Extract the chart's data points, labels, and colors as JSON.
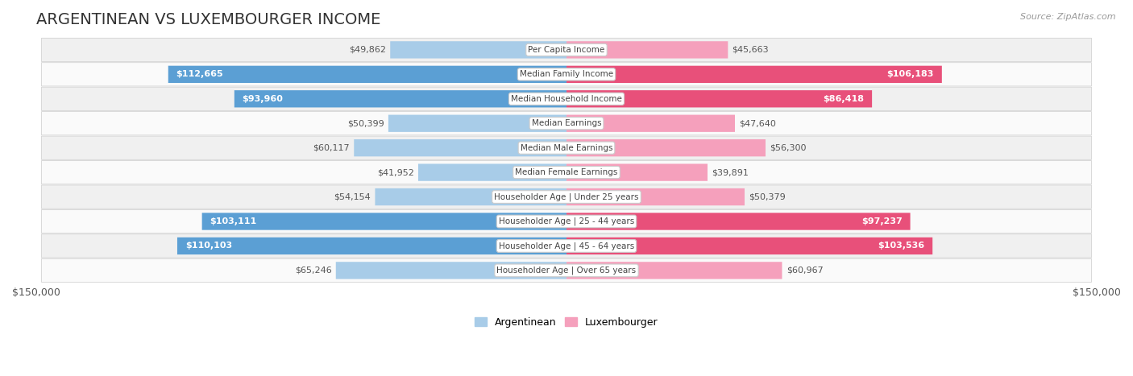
{
  "title": "ARGENTINEAN VS LUXEMBOURGER INCOME",
  "source": "Source: ZipAtlas.com",
  "categories": [
    "Per Capita Income",
    "Median Family Income",
    "Median Household Income",
    "Median Earnings",
    "Median Male Earnings",
    "Median Female Earnings",
    "Householder Age | Under 25 years",
    "Householder Age | 25 - 44 years",
    "Householder Age | 45 - 64 years",
    "Householder Age | Over 65 years"
  ],
  "argentinean_values": [
    49862,
    112665,
    93960,
    50399,
    60117,
    41952,
    54154,
    103111,
    110103,
    65246
  ],
  "luxembourger_values": [
    45663,
    106183,
    86418,
    47640,
    56300,
    39891,
    50379,
    97237,
    103536,
    60967
  ],
  "argentinean_color_dark": "#5b9fd4",
  "argentinean_color_light": "#a8cce8",
  "luxembourger_color_dark": "#e8507a",
  "luxembourger_color_light": "#f5a0bc",
  "argentinean_label": "Argentinean",
  "luxembourger_label": "Luxembourger",
  "max_value": 150000,
  "x_tick_label_left": "$150,000",
  "x_tick_label_right": "$150,000",
  "background_color": "#ffffff",
  "row_bg_odd": "#f0f0f0",
  "row_bg_even": "#fafafa",
  "label_fontsize": 8,
  "title_fontsize": 14,
  "value_label_dark": "#555555",
  "value_label_light": "#ffffff",
  "threshold_ratio": 0.45
}
